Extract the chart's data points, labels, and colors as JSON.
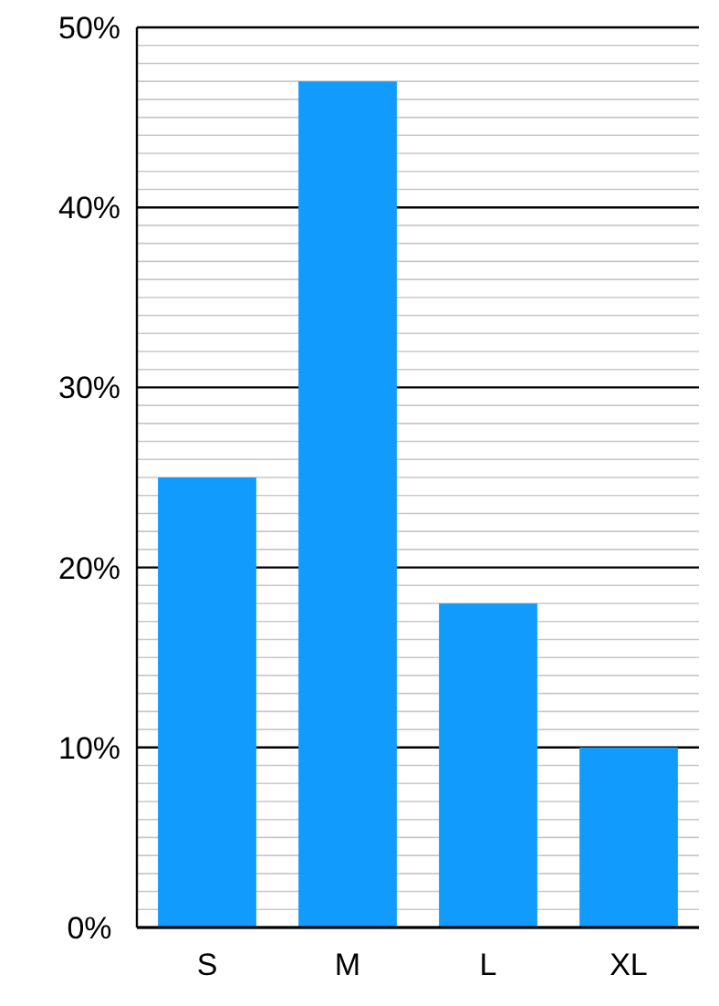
{
  "chart_data": {
    "type": "bar",
    "categories": [
      "S",
      "M",
      "L",
      "XL"
    ],
    "values": [
      25,
      47,
      18,
      10
    ],
    "color": "#119cfd",
    "ylim": [
      0,
      50
    ],
    "yticks": [
      {
        "value": 0,
        "label": "0%"
      },
      {
        "value": 1,
        "label": null
      },
      {
        "value": 2,
        "label": null
      },
      {
        "value": 3,
        "label": null
      },
      {
        "value": 4,
        "label": null
      },
      {
        "value": 5,
        "label": null
      },
      {
        "value": 6,
        "label": null
      },
      {
        "value": 7,
        "label": null
      },
      {
        "value": 8,
        "label": null
      },
      {
        "value": 9,
        "label": null
      },
      {
        "value": 10,
        "label": "10%"
      },
      {
        "value": 11,
        "label": null
      },
      {
        "value": 12,
        "label": null
      },
      {
        "value": 13,
        "label": null
      },
      {
        "value": 14,
        "label": null
      },
      {
        "value": 15,
        "label": null
      },
      {
        "value": 16,
        "label": null
      },
      {
        "value": 17,
        "label": null
      },
      {
        "value": 18,
        "label": null
      },
      {
        "value": 19,
        "label": null
      },
      {
        "value": 20,
        "label": "20%"
      },
      {
        "value": 21,
        "label": null
      },
      {
        "value": 22,
        "label": null
      },
      {
        "value": 23,
        "label": null
      },
      {
        "value": 24,
        "label": null
      },
      {
        "value": 25,
        "label": null
      },
      {
        "value": 26,
        "label": null
      },
      {
        "value": 27,
        "label": null
      },
      {
        "value": 28,
        "label": null
      },
      {
        "value": 29,
        "label": null
      },
      {
        "value": 30,
        "label": "30%"
      },
      {
        "value": 31,
        "label": null
      },
      {
        "value": 32,
        "label": null
      },
      {
        "value": 33,
        "label": null
      },
      {
        "value": 34,
        "label": null
      },
      {
        "value": 35,
        "label": null
      },
      {
        "value": 36,
        "label": null
      },
      {
        "value": 37,
        "label": null
      },
      {
        "value": 38,
        "label": null
      },
      {
        "value": 39,
        "label": null
      },
      {
        "value": 40,
        "label": "40%"
      },
      {
        "value": 41,
        "label": null
      },
      {
        "value": 42,
        "label": null
      },
      {
        "value": 43,
        "label": null
      },
      {
        "value": 44,
        "label": null
      },
      {
        "value": 45,
        "label": null
      },
      {
        "value": 46,
        "label": null
      },
      {
        "value": 47,
        "label": null
      },
      {
        "value": 48,
        "label": null
      },
      {
        "value": 49,
        "label": null
      },
      {
        "value": 50,
        "label": "50%"
      }
    ],
    "grid": "y"
  }
}
